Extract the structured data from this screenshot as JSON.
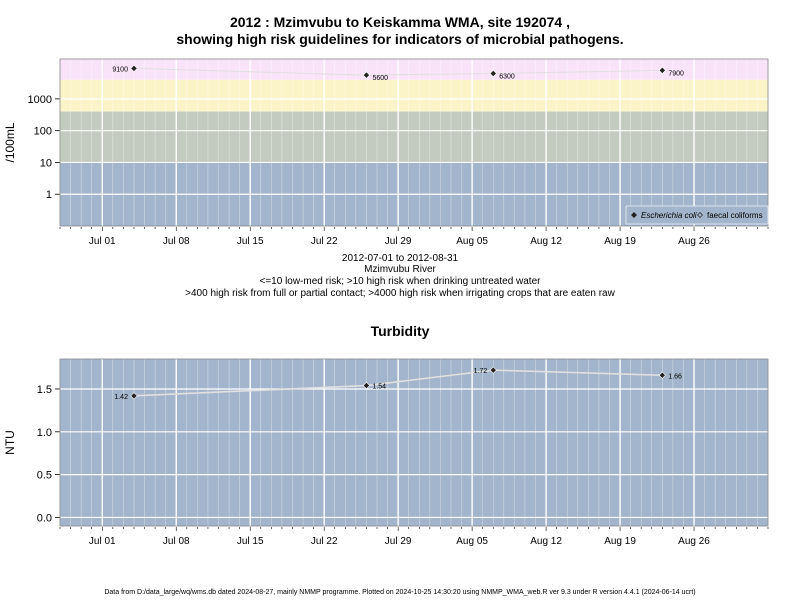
{
  "header": {
    "title_line1": "2012 : Mzimvubu to Keiskamma WMA, site 192074 ,",
    "title_line2": "showing high risk guidelines for indicators of microbial pathogens."
  },
  "description": {
    "date_range": "2012-07-01 to 2012-08-31",
    "river": "Mzimvubu River",
    "note1": "<=10 low-med risk; >10 high risk when drinking untreated water",
    "note2": ">400 high risk from full or partial contact; >4000 high risk when irrigating crops that are eaten raw"
  },
  "turbidity": {
    "title": "Turbidity"
  },
  "footer": {
    "text": "Data from D:/data_large/wq/wms.db dated 2024-08-27, mainly NMMP programme. Plotted on 2024-10-25 14:30:20 using NMMP_WMA_web.R ver 9.3 under R version 4.4.1 (2024-06-14 ucrt)"
  },
  "colors": {
    "band_low": "#a3b5cc",
    "band_med": "#c3cbc0",
    "band_high": "#fbf4c8",
    "band_vhigh": "#f9e3f9",
    "panel_bg": "#a3b5cc",
    "grid": "#ffffff",
    "series_line": "#e0e0e0",
    "marker": "#222222"
  },
  "chart_data": [
    {
      "type": "scatter",
      "title": "",
      "xlabel": "",
      "ylabel": "/100mL",
      "y_scale": "log",
      "xlim": [
        "2012-06-27",
        "2012-09-02"
      ],
      "ylim": [
        0.1,
        18000
      ],
      "y_ticks": [
        1,
        10,
        100,
        1000
      ],
      "y_tick_labels": [
        "1",
        "10",
        "100",
        "1000"
      ],
      "x_tick_dates": [
        "2012-07-01",
        "2012-07-08",
        "2012-07-15",
        "2012-07-22",
        "2012-07-29",
        "2012-08-05",
        "2012-08-12",
        "2012-08-19",
        "2012-08-26"
      ],
      "x_tick_labels": [
        "Jul 01",
        "Jul 08",
        "Jul 15",
        "Jul 22",
        "Jul 29",
        "Aug 05",
        "Aug 12",
        "Aug 19",
        "Aug 26"
      ],
      "risk_bands": [
        {
          "from": 0.1,
          "to": 10,
          "color": "band_low"
        },
        {
          "from": 10,
          "to": 400,
          "color": "band_med"
        },
        {
          "from": 400,
          "to": 4000,
          "color": "band_high"
        },
        {
          "from": 4000,
          "to": 18000,
          "color": "band_vhigh"
        }
      ],
      "grid": true,
      "legend_position": "bottom-right",
      "legend": [
        {
          "label": "Escherichia coli",
          "marker": "filled-diamond"
        },
        {
          "label": "faecal coliforms",
          "marker": "open-diamond"
        }
      ],
      "series": [
        {
          "name": "Escherichia coli",
          "x": [
            "2012-07-04",
            "2012-07-26",
            "2012-08-07",
            "2012-08-23"
          ],
          "values": [
            9100,
            5600,
            6300,
            7900
          ],
          "labels": [
            "9100",
            "5600",
            "6300",
            "7900"
          ]
        }
      ]
    },
    {
      "type": "line",
      "title": "Turbidity",
      "xlabel": "",
      "ylabel": "NTU",
      "xlim": [
        "2012-06-27",
        "2012-09-02"
      ],
      "ylim": [
        -0.1,
        1.85
      ],
      "y_ticks": [
        0.0,
        0.5,
        1.0,
        1.5
      ],
      "y_tick_labels": [
        "0.0",
        "0.5",
        "1.0",
        "1.5"
      ],
      "x_tick_dates": [
        "2012-07-01",
        "2012-07-08",
        "2012-07-15",
        "2012-07-22",
        "2012-07-29",
        "2012-08-05",
        "2012-08-12",
        "2012-08-19",
        "2012-08-26"
      ],
      "x_tick_labels": [
        "Jul 01",
        "Jul 08",
        "Jul 15",
        "Jul 22",
        "Jul 29",
        "Aug 05",
        "Aug 12",
        "Aug 19",
        "Aug 26"
      ],
      "grid": true,
      "series": [
        {
          "x": [
            "2012-07-04",
            "2012-07-26",
            "2012-08-07",
            "2012-08-23"
          ],
          "values": [
            1.42,
            1.54,
            1.72,
            1.66
          ],
          "labels": [
            "1.42",
            "1.54",
            "1.72",
            "1.66"
          ]
        }
      ]
    }
  ]
}
